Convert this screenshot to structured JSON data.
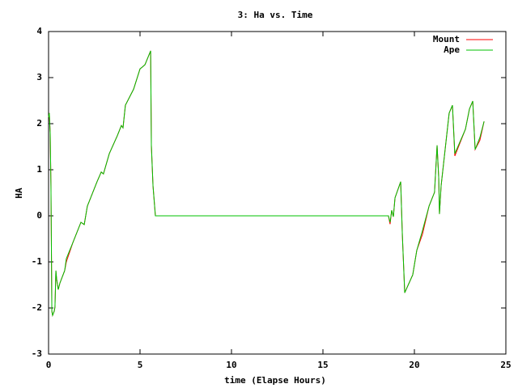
{
  "chart_data": {
    "type": "line",
    "title": "3: Ha vs. Time",
    "x_label": "time (Elapse Hours)",
    "y_label": "HA",
    "x": [
      0,
      0.04,
      0.09,
      0.13,
      0.18,
      0.22,
      0.31,
      0.35,
      0.4,
      0.44,
      0.53,
      0.62,
      0.88,
      0.97,
      1.33,
      1.77,
      1.95,
      2.12,
      2.65,
      2.88,
      3.0,
      3.32,
      3.76,
      3.98,
      4.07,
      4.2,
      4.65,
      5.0,
      5.13,
      5.27,
      5.58,
      5.62,
      5.71,
      5.84,
      18.58,
      18.67,
      18.76,
      18.85,
      18.94,
      19.25,
      19.34,
      19.47,
      19.91,
      20.13,
      20.44,
      20.8,
      21.1,
      21.24,
      21.33,
      21.37,
      21.46,
      21.9,
      22.08,
      22.21,
      22.79,
      23.01,
      23.19,
      23.32,
      23.58,
      23.81
    ],
    "series": [
      {
        "name": "Mount",
        "color": "#ff0000",
        "values": [
          2.14,
          2.23,
          1.79,
          0.65,
          -2.07,
          -2.16,
          -2.07,
          -1.98,
          -1.19,
          -1.37,
          -1.6,
          -1.46,
          -1.19,
          -1.0,
          -0.58,
          -0.14,
          -0.19,
          0.21,
          0.74,
          0.95,
          0.91,
          1.35,
          1.74,
          1.96,
          1.91,
          2.4,
          2.75,
          3.19,
          3.23,
          3.28,
          3.58,
          1.53,
          0.65,
          0,
          0,
          -0.18,
          0.12,
          -0.02,
          0.39,
          0.74,
          -0.4,
          -1.67,
          -1.28,
          -0.75,
          -0.4,
          0.21,
          0.51,
          1.53,
          0.82,
          0.04,
          0.65,
          2.23,
          2.4,
          1.3,
          1.88,
          2.32,
          2.49,
          1.44,
          1.64,
          2.05
        ]
      },
      {
        "name": "Ape",
        "color": "#00c000",
        "values": [
          2.14,
          2.23,
          1.79,
          0.65,
          -2.07,
          -2.16,
          -2.07,
          -1.98,
          -1.19,
          -1.37,
          -1.6,
          -1.46,
          -1.19,
          -0.93,
          -0.58,
          -0.14,
          -0.19,
          0.21,
          0.74,
          0.95,
          0.91,
          1.35,
          1.74,
          1.96,
          1.91,
          2.4,
          2.75,
          3.19,
          3.23,
          3.28,
          3.58,
          1.53,
          0.65,
          0,
          0,
          -0.14,
          0.12,
          -0.02,
          0.39,
          0.74,
          -0.4,
          -1.67,
          -1.28,
          -0.75,
          -0.32,
          0.21,
          0.51,
          1.53,
          0.82,
          0.04,
          0.65,
          2.23,
          2.4,
          1.35,
          1.88,
          2.32,
          2.49,
          1.44,
          1.7,
          2.05
        ]
      }
    ],
    "xlim": [
      0,
      25
    ],
    "xticks": [
      0,
      5,
      10,
      15,
      20,
      25
    ],
    "ylim": [
      -3,
      4
    ],
    "yticks": [
      -3,
      -2,
      -1,
      0,
      1,
      2,
      3,
      4
    ],
    "legend": "top-right"
  }
}
